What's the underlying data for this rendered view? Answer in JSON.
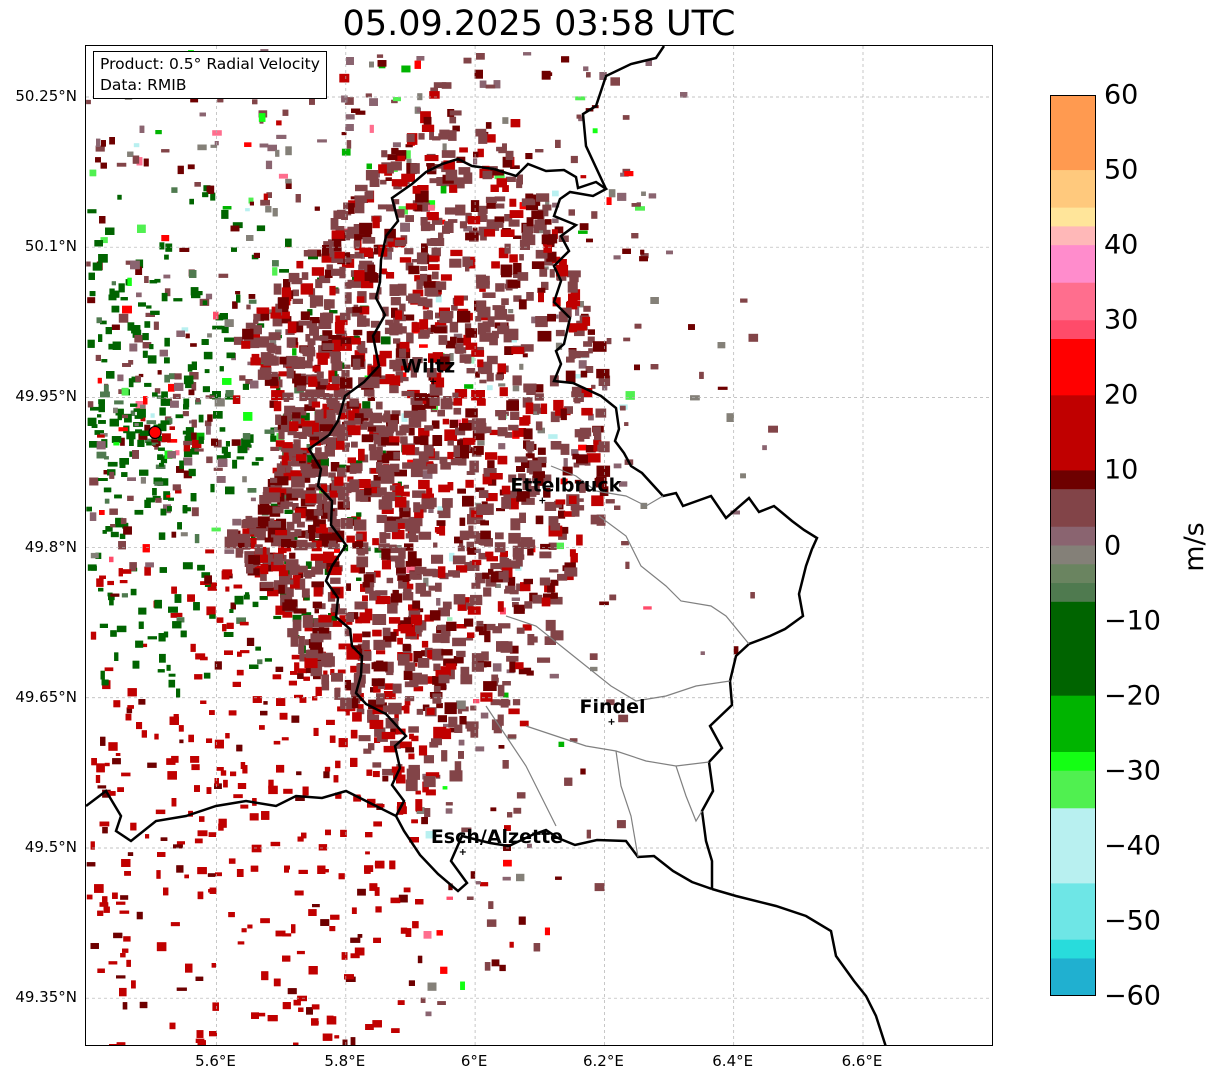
{
  "title": "05.09.2025 03:58 UTC",
  "info": {
    "product": "Product: 0.5° Radial Velocity",
    "source": "Data: RMIB"
  },
  "axes": {
    "lon_range": [
      5.4,
      6.8
    ],
    "lat_range": [
      49.3,
      50.3
    ],
    "y_ticks": [
      {
        "value": 50.25,
        "label": "50.25°N"
      },
      {
        "value": 50.1,
        "label": "50.1°N"
      },
      {
        "value": 49.95,
        "label": "49.95°N"
      },
      {
        "value": 49.8,
        "label": "49.8°N"
      },
      {
        "value": 49.65,
        "label": "49.65°N"
      },
      {
        "value": 49.5,
        "label": "49.5°N"
      },
      {
        "value": 49.35,
        "label": "49.35°N"
      }
    ],
    "x_ticks": [
      {
        "value": 5.6,
        "label": "5.6°E"
      },
      {
        "value": 5.8,
        "label": "5.8°E"
      },
      {
        "value": 6.0,
        "label": "6°E"
      },
      {
        "value": 6.2,
        "label": "6.2°E"
      },
      {
        "value": 6.4,
        "label": "6.4°E"
      },
      {
        "value": 6.6,
        "label": "6.6°E"
      }
    ],
    "grid": true
  },
  "cities": [
    {
      "name": "Wiltz",
      "lon": 5.935,
      "lat": 49.966
    },
    {
      "name": "Ettelbruck",
      "lon": 6.104,
      "lat": 49.847
    },
    {
      "name": "Findel",
      "lon": 6.211,
      "lat": 49.626
    },
    {
      "name": "Esch/Alzette",
      "lon": 5.981,
      "lat": 49.496
    }
  ],
  "radar_site": {
    "lon": 5.505,
    "lat": 49.915,
    "color": "#ff0000"
  },
  "colorbar": {
    "label": "m/s",
    "range": [
      -60,
      60
    ],
    "ticks": [
      "60",
      "50",
      "40",
      "30",
      "20",
      "10",
      "0",
      "−10",
      "−20",
      "−30",
      "−40",
      "−50",
      "−60"
    ],
    "stops": [
      {
        "value": 60,
        "color": "#ff9a50"
      },
      {
        "value": 50,
        "color": "#ffc97d"
      },
      {
        "value": 46,
        "color": "#ffe59a"
      },
      {
        "value": 43,
        "color": "#ffb8b8"
      },
      {
        "value": 40,
        "color": "#ff8ccc"
      },
      {
        "value": 35,
        "color": "#ff6e8e"
      },
      {
        "value": 30,
        "color": "#ff4b6a"
      },
      {
        "value": 28,
        "color": "#ff0000"
      },
      {
        "value": 20,
        "color": "#c00000"
      },
      {
        "value": 10,
        "color": "#6e0000"
      },
      {
        "value": 8,
        "color": "#824448"
      },
      {
        "value": 3,
        "color": "#8a6470"
      },
      {
        "value": 0,
        "color": "#848078"
      },
      {
        "value": -3,
        "color": "#6a8460"
      },
      {
        "value": -6,
        "color": "#4f7a4f"
      },
      {
        "value": -8,
        "color": "#006400"
      },
      {
        "value": -20,
        "color": "#00b400"
      },
      {
        "value": -28,
        "color": "#14ff14"
      },
      {
        "value": -30,
        "color": "#50f050"
      },
      {
        "value": -35,
        "color": "#a0f0c0"
      },
      {
        "value": -36,
        "color": "#b8f0f0"
      },
      {
        "value": -45,
        "color": "#6ee6e6"
      },
      {
        "value": -52,
        "color": "#28dcdc"
      },
      {
        "value": -55,
        "color": "#20b0d0"
      },
      {
        "value": -60,
        "color": "#1e7fc8"
      }
    ]
  },
  "colors": {
    "border": "#000000",
    "canton_border": "#808080",
    "grid": "#b0b0b0"
  }
}
